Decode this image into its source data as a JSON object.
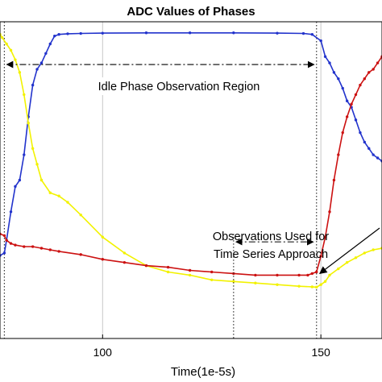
{
  "chart_data": {
    "type": "line",
    "title": "ADC Values of Phases",
    "xlabel": "Time(1e-5s)",
    "ylabel": "",
    "xlim": [
      76.5,
      164
    ],
    "ylim": [
      0,
      1
    ],
    "x_ticks": [
      {
        "value": 100,
        "label": "100"
      },
      {
        "value": 150,
        "label": "150"
      }
    ],
    "grid": true,
    "vlines": [
      77.5,
      149
    ],
    "series": [
      {
        "color": "#2233cc",
        "x": [
          76.5,
          77.5,
          78,
          79,
          80,
          81,
          82,
          83,
          84,
          85,
          86,
          87,
          88,
          89,
          90,
          92,
          95,
          100,
          110,
          120,
          130,
          140,
          146,
          148,
          150,
          151,
          152,
          153,
          154,
          155,
          156,
          157,
          158,
          159,
          160,
          161,
          162,
          163,
          164
        ],
        "y": [
          0.262,
          0.27,
          0.31,
          0.4,
          0.48,
          0.5,
          0.58,
          0.7,
          0.8,
          0.85,
          0.87,
          0.9,
          0.93,
          0.955,
          0.96,
          0.962,
          0.963,
          0.964,
          0.965,
          0.965,
          0.965,
          0.964,
          0.963,
          0.96,
          0.94,
          0.89,
          0.87,
          0.84,
          0.82,
          0.79,
          0.75,
          0.73,
          0.69,
          0.65,
          0.62,
          0.6,
          0.58,
          0.57,
          0.56
        ]
      },
      {
        "color": "#f2f200",
        "x": [
          76.5,
          77,
          78,
          79,
          80,
          81,
          82,
          83,
          84,
          85,
          86,
          88,
          90,
          92,
          95,
          100,
          105,
          110,
          115,
          120,
          125,
          130,
          135,
          140,
          145,
          148,
          149,
          150,
          151,
          152,
          154,
          156,
          158,
          160,
          162,
          164
        ],
        "y": [
          0.96,
          0.95,
          0.93,
          0.91,
          0.88,
          0.84,
          0.77,
          0.68,
          0.6,
          0.55,
          0.5,
          0.46,
          0.45,
          0.43,
          0.39,
          0.32,
          0.27,
          0.23,
          0.21,
          0.2,
          0.185,
          0.18,
          0.175,
          0.17,
          0.165,
          0.163,
          0.162,
          0.17,
          0.18,
          0.2,
          0.22,
          0.24,
          0.255,
          0.27,
          0.28,
          0.285
        ]
      },
      {
        "color": "#cc1111",
        "x": [
          76.5,
          77.5,
          78,
          79,
          80,
          82,
          84,
          86,
          88,
          90,
          95,
          100,
          105,
          110,
          115,
          120,
          125,
          130,
          135,
          140,
          145,
          147,
          148,
          149,
          150,
          151,
          152,
          153,
          154,
          155,
          156,
          157,
          158,
          159,
          160,
          161,
          162,
          163,
          164
        ],
        "y": [
          0.33,
          0.325,
          0.31,
          0.3,
          0.295,
          0.29,
          0.29,
          0.285,
          0.28,
          0.275,
          0.265,
          0.25,
          0.24,
          0.23,
          0.225,
          0.215,
          0.21,
          0.205,
          0.2,
          0.2,
          0.2,
          0.2,
          0.205,
          0.21,
          0.26,
          0.32,
          0.4,
          0.5,
          0.58,
          0.65,
          0.7,
          0.74,
          0.77,
          0.8,
          0.82,
          0.84,
          0.85,
          0.87,
          0.89
        ]
      }
    ],
    "annotations": [
      {
        "text": "Idle Phase Observation Region",
        "arrow": "double-headed",
        "x_from": 77.5,
        "x_to": 149,
        "y": 0.865
      },
      {
        "text": "Observations Used for",
        "line": 1
      },
      {
        "text": "Time Series Approach",
        "line": 2,
        "arrow": "double-headed",
        "x_from": 130,
        "x_to": 149,
        "y": 0.305
      }
    ]
  }
}
